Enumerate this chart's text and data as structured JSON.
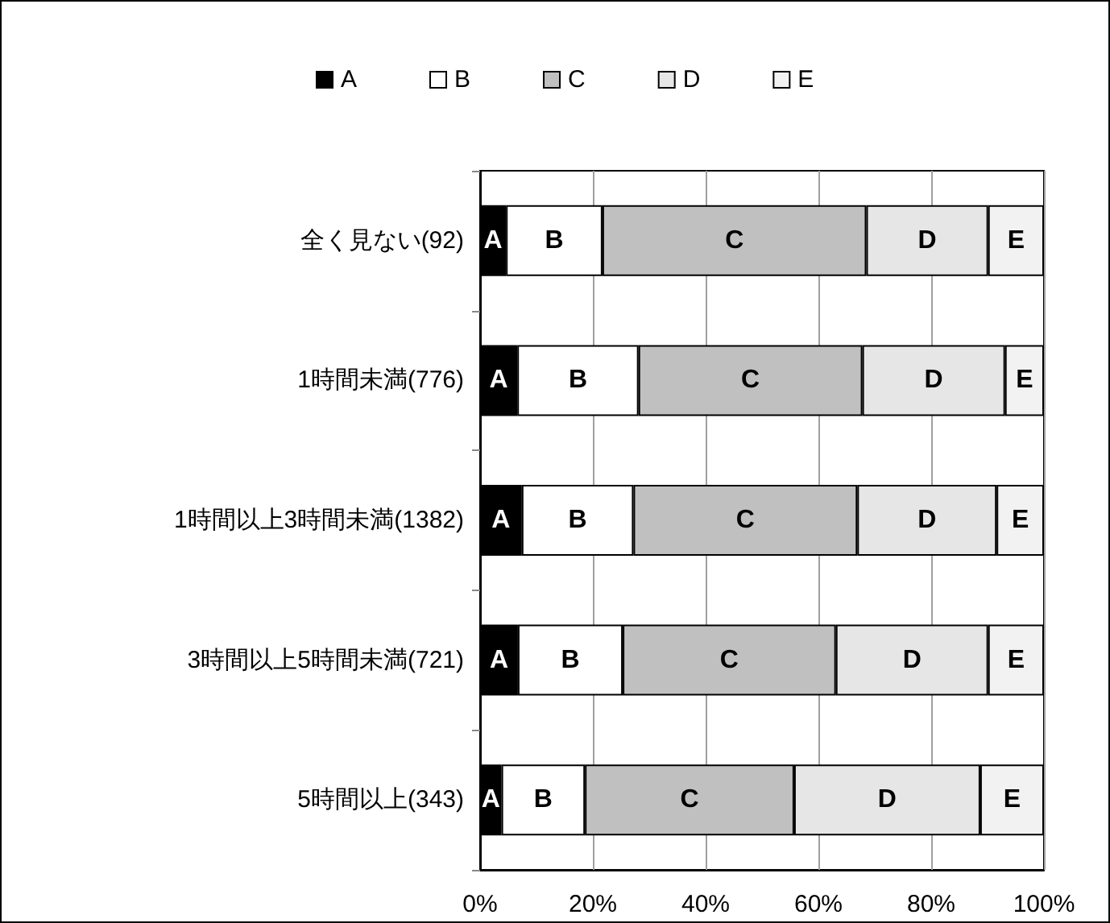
{
  "chart_data": {
    "type": "bar",
    "orientation": "horizontal",
    "stacked": true,
    "categories": [
      "全く見ない(92)",
      "1時間未満(776)",
      "1時間以上3時間未満(1382)",
      "3時間以上5時間未満(721)",
      "5時間以上(343)"
    ],
    "series": [
      {
        "name": "A",
        "color": "#000000",
        "values": [
          4.6,
          6.6,
          7.4,
          6.7,
          3.8
        ]
      },
      {
        "name": "B",
        "color": "#ffffff",
        "values": [
          17.1,
          21.5,
          19.8,
          18.6,
          14.8
        ]
      },
      {
        "name": "C",
        "color": "#c0c0c0",
        "values": [
          46.8,
          39.7,
          39.7,
          37.8,
          37.1
        ]
      },
      {
        "name": "D",
        "color": "#e6e6e6",
        "values": [
          21.6,
          25.3,
          24.7,
          27.0,
          33.0
        ]
      },
      {
        "name": "E",
        "color": "#f2f2f2",
        "values": [
          9.9,
          6.9,
          8.4,
          9.9,
          11.3
        ]
      }
    ],
    "xlim": [
      0,
      100
    ],
    "xticks": [
      {
        "value": 0,
        "label": "0%"
      },
      {
        "value": 20,
        "label": "20%"
      },
      {
        "value": 40,
        "label": "40%"
      },
      {
        "value": 60,
        "label": "60%"
      },
      {
        "value": 80,
        "label": "80%"
      },
      {
        "value": 100,
        "label": "100%"
      }
    ],
    "grid": "x",
    "legend": "top"
  }
}
